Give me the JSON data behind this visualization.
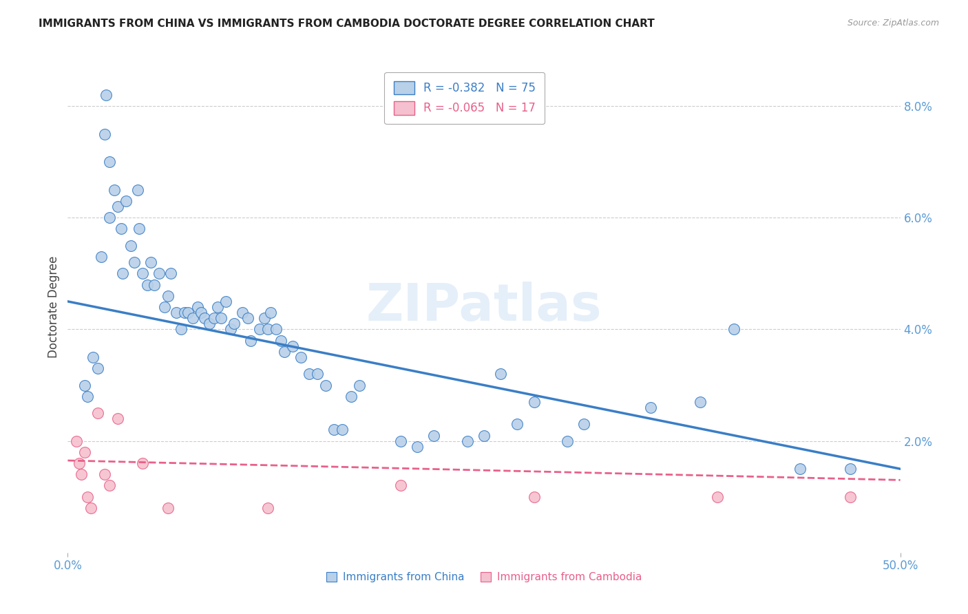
{
  "title": "IMMIGRANTS FROM CHINA VS IMMIGRANTS FROM CAMBODIA DOCTORATE DEGREE CORRELATION CHART",
  "source": "Source: ZipAtlas.com",
  "ylabel": "Doctorate Degree",
  "xlim": [
    0.0,
    0.5
  ],
  "ylim": [
    0.0,
    0.088
  ],
  "xtick_positions": [
    0.0,
    0.5
  ],
  "xtick_labels": [
    "0.0%",
    "50.0%"
  ],
  "yticks_right": [
    0.0,
    0.02,
    0.04,
    0.06,
    0.08
  ],
  "ytick_labels_right": [
    "",
    "2.0%",
    "4.0%",
    "6.0%",
    "8.0%"
  ],
  "legend_china_R": "-0.382",
  "legend_china_N": "75",
  "legend_cambodia_R": "-0.065",
  "legend_cambodia_N": "17",
  "color_china": "#b8d0e8",
  "color_china_line": "#3a7ec6",
  "color_cambodia": "#f5c0cf",
  "color_cambodia_line": "#e8608a",
  "color_axis_labels": "#5b9bd5",
  "color_grid": "#cccccc",
  "watermark": "ZIPatlas",
  "china_x": [
    0.01,
    0.012,
    0.015,
    0.018,
    0.02,
    0.022,
    0.023,
    0.025,
    0.025,
    0.028,
    0.03,
    0.032,
    0.033,
    0.035,
    0.038,
    0.04,
    0.042,
    0.043,
    0.045,
    0.048,
    0.05,
    0.052,
    0.055,
    0.058,
    0.06,
    0.062,
    0.065,
    0.068,
    0.07,
    0.072,
    0.075,
    0.078,
    0.08,
    0.082,
    0.085,
    0.088,
    0.09,
    0.092,
    0.095,
    0.098,
    0.1,
    0.105,
    0.108,
    0.11,
    0.115,
    0.118,
    0.12,
    0.122,
    0.125,
    0.128,
    0.13,
    0.135,
    0.14,
    0.145,
    0.15,
    0.155,
    0.16,
    0.165,
    0.17,
    0.175,
    0.2,
    0.21,
    0.22,
    0.24,
    0.25,
    0.26,
    0.27,
    0.28,
    0.3,
    0.31,
    0.35,
    0.38,
    0.4,
    0.44,
    0.47
  ],
  "china_y": [
    0.03,
    0.028,
    0.035,
    0.033,
    0.053,
    0.075,
    0.082,
    0.06,
    0.07,
    0.065,
    0.062,
    0.058,
    0.05,
    0.063,
    0.055,
    0.052,
    0.065,
    0.058,
    0.05,
    0.048,
    0.052,
    0.048,
    0.05,
    0.044,
    0.046,
    0.05,
    0.043,
    0.04,
    0.043,
    0.043,
    0.042,
    0.044,
    0.043,
    0.042,
    0.041,
    0.042,
    0.044,
    0.042,
    0.045,
    0.04,
    0.041,
    0.043,
    0.042,
    0.038,
    0.04,
    0.042,
    0.04,
    0.043,
    0.04,
    0.038,
    0.036,
    0.037,
    0.035,
    0.032,
    0.032,
    0.03,
    0.022,
    0.022,
    0.028,
    0.03,
    0.02,
    0.019,
    0.021,
    0.02,
    0.021,
    0.032,
    0.023,
    0.027,
    0.02,
    0.023,
    0.026,
    0.027,
    0.04,
    0.015,
    0.015
  ],
  "cambodia_x": [
    0.005,
    0.007,
    0.008,
    0.01,
    0.012,
    0.014,
    0.018,
    0.022,
    0.025,
    0.03,
    0.045,
    0.06,
    0.12,
    0.2,
    0.28,
    0.39,
    0.47
  ],
  "cambodia_y": [
    0.02,
    0.016,
    0.014,
    0.018,
    0.01,
    0.008,
    0.025,
    0.014,
    0.012,
    0.024,
    0.016,
    0.008,
    0.008,
    0.012,
    0.01,
    0.01,
    0.01
  ],
  "china_trendline_x": [
    0.0,
    0.5
  ],
  "china_trendline_y": [
    0.045,
    0.015
  ],
  "cambodia_trendline_x": [
    0.0,
    0.5
  ],
  "cambodia_trendline_y": [
    0.0165,
    0.013
  ]
}
